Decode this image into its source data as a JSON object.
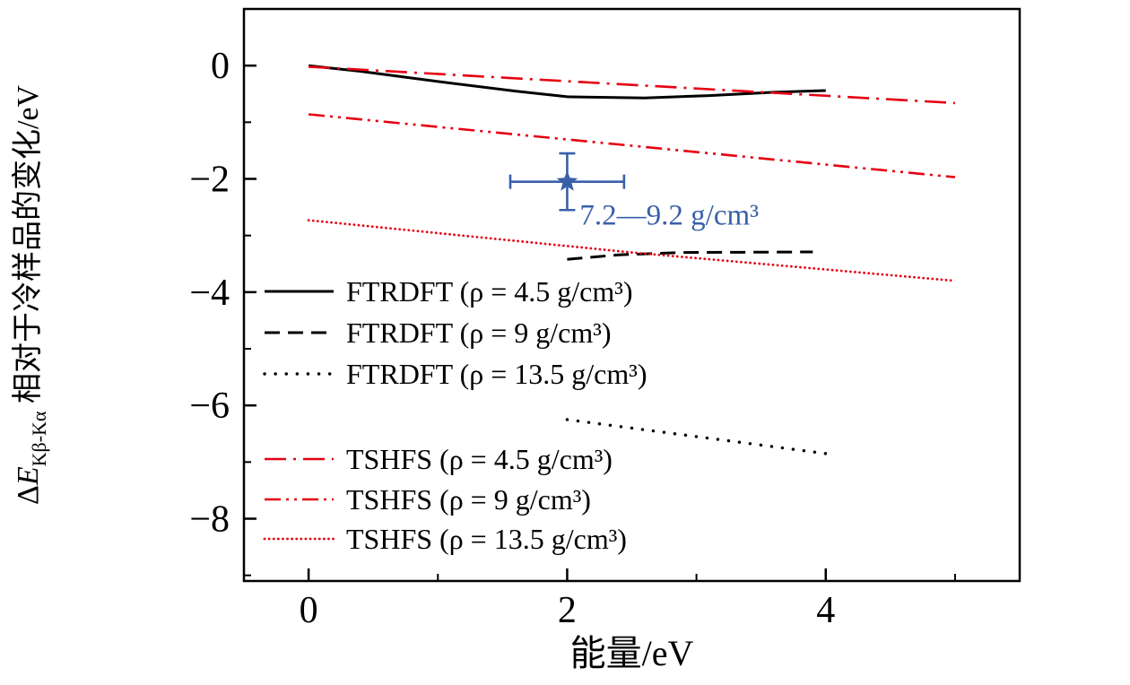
{
  "chart_data": {
    "type": "line",
    "title": "",
    "xlabel": "能量/eV",
    "ylabel": {
      "pre": "Δ",
      "variable": "E",
      "sub": "Kβ-Kα",
      "post": " 相对于冷样品的变化/eV"
    },
    "xlim": [
      -0.5,
      5.5
    ],
    "ylim": [
      -9.1,
      1.0
    ],
    "xticks": {
      "major": [
        0,
        2,
        4
      ],
      "minor": [
        1,
        3,
        5
      ]
    },
    "yticks": {
      "major": [
        0,
        -2,
        -4,
        -6,
        -8
      ],
      "minor": [
        -1,
        -3,
        -5,
        -7,
        -9
      ]
    },
    "grid": false,
    "colors": {
      "black": "#000000",
      "red": "#e60012",
      "blue": "#3a5fa9"
    },
    "series": [
      {
        "name": "FTRDFT (ρ = 4.5 g/cm³)",
        "color": "black",
        "style": "solid",
        "points": [
          [
            0,
            0
          ],
          [
            0.4,
            -0.1
          ],
          [
            1,
            -0.28
          ],
          [
            1.6,
            -0.45
          ],
          [
            2,
            -0.55
          ],
          [
            2.6,
            -0.57
          ],
          [
            3.1,
            -0.53
          ],
          [
            3.6,
            -0.47
          ],
          [
            4,
            -0.44
          ]
        ]
      },
      {
        "name": "FTRDFT (ρ = 9 g/cm³)",
        "color": "black",
        "style": "dashed",
        "points": [
          [
            2,
            -3.42
          ],
          [
            2.4,
            -3.34
          ],
          [
            2.9,
            -3.3
          ],
          [
            3.9,
            -3.29
          ]
        ]
      },
      {
        "name": "FTRDFT (ρ = 13.5 g/cm³)",
        "color": "black",
        "style": "dotted-sparse",
        "points": [
          [
            2,
            -6.25
          ],
          [
            4,
            -6.85
          ]
        ]
      },
      {
        "name": "TSHFS (ρ = 4.5 g/cm³)",
        "color": "red",
        "style": "dashdot",
        "points": [
          [
            0,
            -0.02
          ],
          [
            5,
            -0.66
          ]
        ]
      },
      {
        "name": "TSHFS (ρ = 9 g/cm³)",
        "color": "red",
        "style": "dashdotdot",
        "points": [
          [
            0,
            -0.86
          ],
          [
            5,
            -1.97
          ]
        ]
      },
      {
        "name": "TSHFS (ρ = 13.5 g/cm³)",
        "color": "red",
        "style": "dotted",
        "points": [
          [
            0,
            -2.73
          ],
          [
            2.5,
            -3.3
          ],
          [
            5,
            -3.8
          ]
        ]
      }
    ],
    "experiment_point": {
      "x": 2,
      "y": -2.05,
      "xerr": 0.44,
      "yerr": 0.5,
      "marker": "star",
      "label": "7.2—9.2 g/cm³"
    },
    "legend": {
      "position": "inside-left",
      "entries": [
        "FTRDFT (ρ = 4.5 g/cm³)",
        "FTRDFT (ρ = 9 g/cm³)",
        "FTRDFT (ρ = 13.5 g/cm³)",
        "TSHFS (ρ = 4.5 g/cm³)",
        "TSHFS (ρ = 9 g/cm³)",
        "TSHFS (ρ = 13.5 g/cm³)"
      ]
    }
  }
}
